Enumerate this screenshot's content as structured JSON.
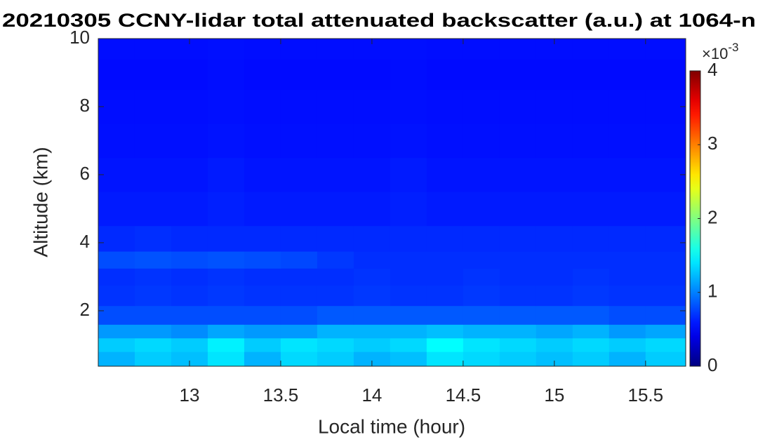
{
  "chart_data": {
    "type": "heatmap",
    "title": "20210305 CCNY-lidar total attenuated backscatter (a.u.) at 1064-n",
    "xlabel": "Local time (hour)",
    "ylabel": "Altitude (km)",
    "xlim": [
      12.5,
      15.72
    ],
    "ylim": [
      0.37,
      10
    ],
    "xticks": [
      13,
      13.5,
      14,
      14.5,
      15,
      15.5
    ],
    "yticks": [
      2,
      4,
      6,
      8,
      10
    ],
    "colormap": "jet",
    "clim": [
      0,
      4
    ],
    "cticks": [
      0,
      1,
      2,
      3,
      4
    ],
    "colorbar_label": {
      "base": "×10",
      "exponent": "-3"
    },
    "x": [
      12.6,
      12.8,
      13.0,
      13.2,
      13.4,
      13.6,
      13.8,
      14.0,
      14.2,
      14.4,
      14.6,
      14.8,
      15.0,
      15.2,
      15.4,
      15.6
    ],
    "y": [
      0.6,
      1.0,
      1.4,
      1.8,
      2.5,
      3.0,
      3.5,
      4.0,
      5,
      6,
      7,
      8,
      9,
      9.8
    ],
    "z": [
      [
        1.2,
        1.3,
        1.25,
        1.4,
        1.2,
        1.35,
        1.3,
        1.2,
        1.25,
        1.4,
        1.35,
        1.3,
        1.25,
        1.3,
        1.2,
        1.3
      ],
      [
        1.3,
        1.35,
        1.3,
        1.45,
        1.3,
        1.4,
        1.35,
        1.3,
        1.35,
        1.5,
        1.4,
        1.35,
        1.3,
        1.35,
        1.3,
        1.35
      ],
      [
        1.1,
        1.1,
        1.05,
        1.15,
        1.1,
        1.1,
        1.2,
        1.2,
        1.2,
        1.25,
        1.2,
        1.2,
        1.15,
        1.2,
        1.1,
        1.15
      ],
      [
        0.8,
        0.8,
        0.8,
        0.8,
        0.8,
        0.8,
        0.85,
        0.85,
        0.85,
        0.85,
        0.85,
        0.85,
        0.85,
        0.85,
        0.8,
        0.8
      ],
      [
        0.7,
        0.72,
        0.7,
        0.72,
        0.7,
        0.7,
        0.7,
        0.72,
        0.7,
        0.7,
        0.72,
        0.7,
        0.7,
        0.72,
        0.7,
        0.7
      ],
      [
        0.68,
        0.7,
        0.68,
        0.7,
        0.68,
        0.68,
        0.68,
        0.7,
        0.68,
        0.68,
        0.7,
        0.68,
        0.68,
        0.7,
        0.68,
        0.68
      ],
      [
        0.8,
        0.82,
        0.8,
        0.82,
        0.8,
        0.78,
        0.72,
        0.68,
        0.68,
        0.68,
        0.68,
        0.68,
        0.68,
        0.68,
        0.68,
        0.68
      ],
      [
        0.66,
        0.68,
        0.66,
        0.66,
        0.66,
        0.66,
        0.66,
        0.66,
        0.66,
        0.66,
        0.66,
        0.66,
        0.66,
        0.66,
        0.66,
        0.66
      ],
      [
        0.6,
        0.6,
        0.6,
        0.62,
        0.6,
        0.6,
        0.6,
        0.6,
        0.62,
        0.6,
        0.6,
        0.6,
        0.6,
        0.6,
        0.6,
        0.6
      ],
      [
        0.58,
        0.58,
        0.58,
        0.6,
        0.58,
        0.58,
        0.58,
        0.58,
        0.6,
        0.58,
        0.58,
        0.58,
        0.58,
        0.58,
        0.58,
        0.58
      ],
      [
        0.56,
        0.56,
        0.56,
        0.57,
        0.56,
        0.56,
        0.56,
        0.56,
        0.57,
        0.56,
        0.56,
        0.56,
        0.56,
        0.56,
        0.56,
        0.56
      ],
      [
        0.55,
        0.55,
        0.55,
        0.56,
        0.55,
        0.55,
        0.55,
        0.55,
        0.56,
        0.55,
        0.55,
        0.55,
        0.55,
        0.55,
        0.55,
        0.55
      ],
      [
        0.54,
        0.54,
        0.54,
        0.55,
        0.54,
        0.54,
        0.54,
        0.54,
        0.55,
        0.54,
        0.54,
        0.54,
        0.54,
        0.54,
        0.54,
        0.54
      ],
      [
        0.55,
        0.55,
        0.55,
        0.56,
        0.55,
        0.55,
        0.55,
        0.55,
        0.56,
        0.55,
        0.55,
        0.55,
        0.55,
        0.55,
        0.55,
        0.55
      ]
    ]
  }
}
